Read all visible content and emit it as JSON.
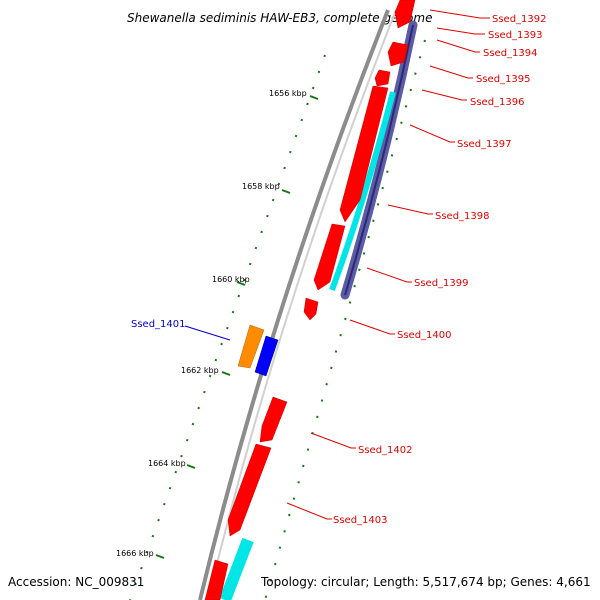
{
  "title": "Shewanella sediminis HAW-EB3, complete genome",
  "footer": {
    "accession": "Accession: NC_009831",
    "summary": "Topology: circular; Length: 5,517,674 bp; Genes: 4,661"
  },
  "colors": {
    "backbone": "#8c8c8c",
    "plus_gene": "#ff0000",
    "minus_gene": "#0000ff",
    "cds_highlight": "#00ffff",
    "orange_feature": "#ff8c00",
    "purple_track": "#5b5ba8",
    "gc_dots": "#117711",
    "label_red": "#e00000",
    "label_blue": "#0000cc"
  },
  "ticks": [
    {
      "label": "1656 kbp"
    },
    {
      "label": "1658 kbp"
    },
    {
      "label": "1660 kbp"
    },
    {
      "label": "1662 kbp"
    },
    {
      "label": "1664 kbp"
    },
    {
      "label": "1666 kbp"
    }
  ],
  "gene_labels": [
    {
      "label": "Ssed_1392",
      "color": "red"
    },
    {
      "label": "Ssed_1393",
      "color": "red"
    },
    {
      "label": "Ssed_1394",
      "color": "red"
    },
    {
      "label": "Ssed_1395",
      "color": "red"
    },
    {
      "label": "Ssed_1396",
      "color": "red"
    },
    {
      "label": "Ssed_1397",
      "color": "red"
    },
    {
      "label": "Ssed_1398",
      "color": "red"
    },
    {
      "label": "Ssed_1399",
      "color": "red"
    },
    {
      "label": "Ssed_1400",
      "color": "red"
    },
    {
      "label": "Ssed_1401",
      "color": "blue"
    },
    {
      "label": "Ssed_1402",
      "color": "red"
    },
    {
      "label": "Ssed_1403",
      "color": "red"
    }
  ]
}
